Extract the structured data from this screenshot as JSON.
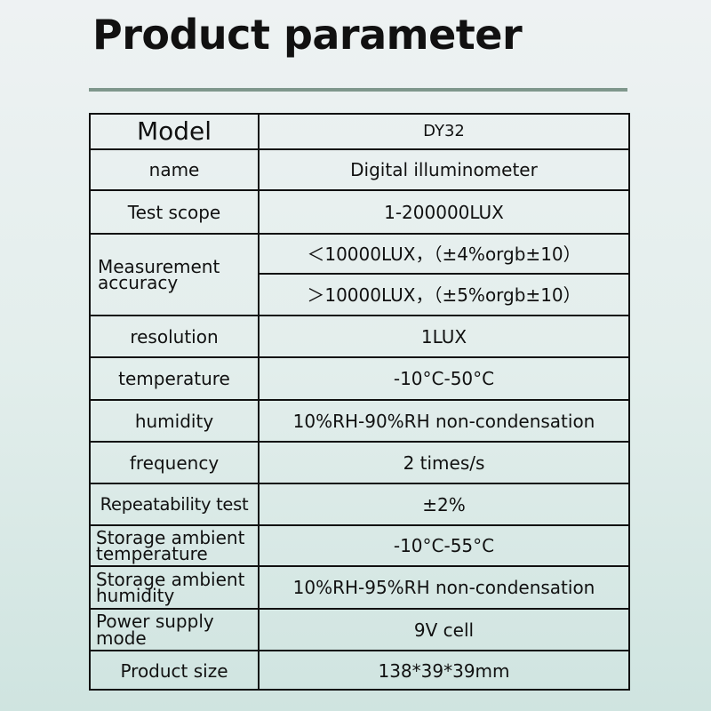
{
  "title": "Product parameter",
  "rows": [
    {
      "label": "Model",
      "value": "DY32"
    },
    {
      "label": "name",
      "value": "Digital illuminometer"
    },
    {
      "label": "Test scope",
      "value": "1-200000LUX"
    },
    {
      "label": "Measurement accuracy",
      "values": [
        "＜10000LUX，（±4%orgb±10）",
        "＞10000LUX，（±5%orgb±10）"
      ]
    },
    {
      "label": "resolution",
      "value": "1LUX"
    },
    {
      "label": "temperature",
      "value": "-10°C-50°C"
    },
    {
      "label": "humidity",
      "value": "10%RH-90%RH non-condensation"
    },
    {
      "label": "frequency",
      "value": "2 times/s"
    },
    {
      "label": "Repeatability test",
      "value": "±2%"
    },
    {
      "label": "Storage ambient temperature",
      "value": "-10°C-55°C"
    },
    {
      "label": "Storage ambient humidity",
      "value": "10%RH-95%RH non-condensation"
    },
    {
      "label": "Power supply mode",
      "value": "9V cell"
    },
    {
      "label": "Product size",
      "value": "138*39*39mm"
    }
  ]
}
